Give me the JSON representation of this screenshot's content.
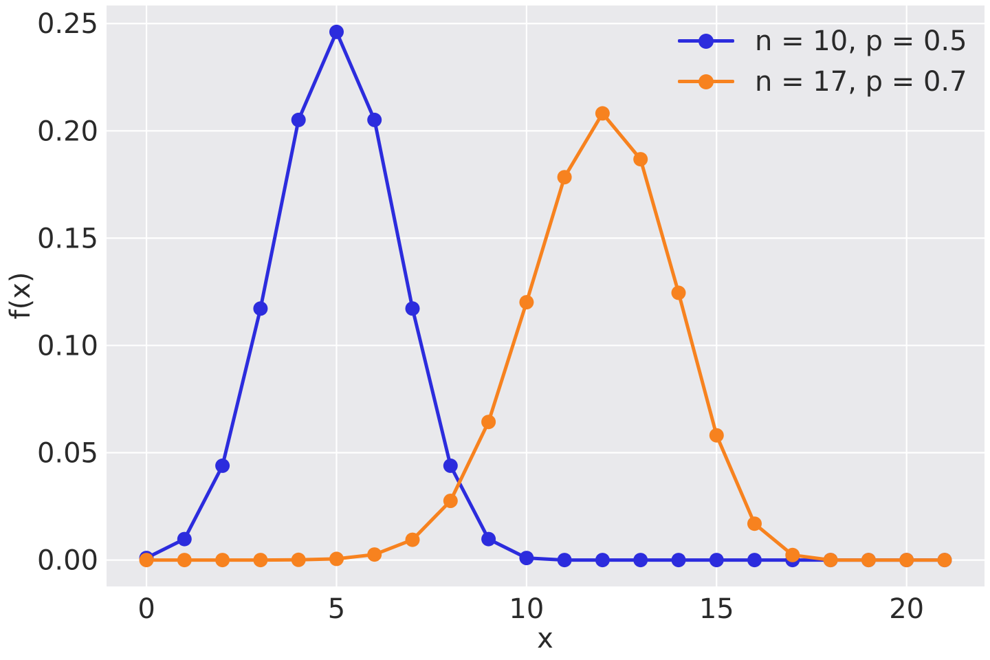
{
  "chart_data": {
    "type": "line",
    "title": "",
    "xlabel": "x",
    "ylabel": "f(x)",
    "grid": true,
    "legend_position": "upper right",
    "x": [
      0,
      1,
      2,
      3,
      4,
      5,
      6,
      7,
      8,
      9,
      10,
      11,
      12,
      13,
      14,
      15,
      16,
      17,
      18,
      19,
      20,
      21
    ],
    "series": [
      {
        "name": "n = 10, p = 0.5",
        "color": "#2c2cdd",
        "values": [
          0.000977,
          0.009766,
          0.043945,
          0.117188,
          0.205078,
          0.246094,
          0.205078,
          0.117188,
          0.043945,
          0.009766,
          0.000977,
          0,
          0,
          0,
          0,
          0,
          0,
          0,
          0,
          0,
          0,
          0
        ]
      },
      {
        "name": "n = 17, p = 0.7",
        "color": "#f7821f",
        "values": [
          0.0,
          1e-07,
          1e-06,
          1.1e-05,
          9.1e-05,
          0.000553,
          0.002579,
          0.009457,
          0.027584,
          0.064364,
          0.120146,
          0.178397,
          0.208129,
          0.186783,
          0.124522,
          0.05811,
          0.016949,
          0.002326,
          0,
          0,
          0,
          0
        ]
      }
    ],
    "xticks": {
      "values": [
        0,
        5,
        10,
        15,
        20
      ],
      "labels": [
        "0",
        "5",
        "10",
        "15",
        "20"
      ]
    },
    "yticks": {
      "values": [
        0,
        0.05,
        0.1,
        0.15,
        0.2,
        0.25
      ],
      "labels": [
        "0.00",
        "0.05",
        "0.10",
        "0.15",
        "0.20",
        "0.25"
      ]
    },
    "xlim": [
      -1.05,
      22.05
    ],
    "ylim": [
      -0.0123,
      0.2584
    ],
    "style": {
      "plot_bg": "#e9e9ec",
      "grid_color": "#ffffff",
      "figure_bg": "#ffffff",
      "text_color": "#2a2a2a",
      "line_width": 5,
      "marker_radius": 10.5,
      "tick_font_size": 40
    }
  }
}
